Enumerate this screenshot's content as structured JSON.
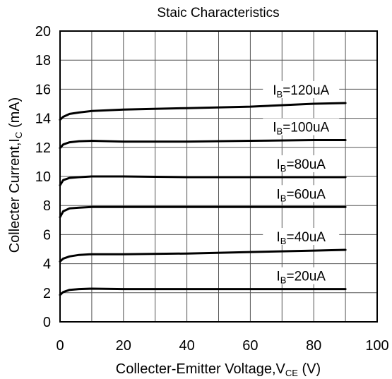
{
  "chart_data": {
    "type": "line",
    "title": "Staic Characteristics",
    "xlabel": {
      "main": "Collecter-Emitter Voltage,V",
      "sub": "CE",
      "unit": " (V)"
    },
    "ylabel": {
      "main": "Collecter Current,I",
      "sub": "C",
      "unit": " (mA)"
    },
    "xlim": [
      0,
      100
    ],
    "ylim": [
      0,
      20
    ],
    "x_ticks": [
      "0",
      "20",
      "40",
      "60",
      "80",
      "100"
    ],
    "y_ticks": [
      "0",
      "2",
      "4",
      "6",
      "8",
      "10",
      "12",
      "14",
      "16",
      "18",
      "20"
    ],
    "grid": true,
    "series": [
      {
        "name": {
          "pre": "I",
          "sub": "B",
          "post": "=120uA"
        },
        "x": [
          0,
          1,
          3,
          6,
          10,
          20,
          40,
          60,
          80,
          90
        ],
        "y": [
          13.9,
          14.1,
          14.3,
          14.4,
          14.5,
          14.6,
          14.7,
          14.8,
          15.0,
          15.05
        ]
      },
      {
        "name": {
          "pre": "I",
          "sub": "B",
          "post": "=100uA"
        },
        "x": [
          0,
          1,
          3,
          6,
          10,
          20,
          40,
          60,
          80,
          90
        ],
        "y": [
          11.95,
          12.2,
          12.35,
          12.42,
          12.45,
          12.4,
          12.4,
          12.45,
          12.5,
          12.5
        ]
      },
      {
        "name": {
          "pre": "I",
          "sub": "B",
          "post": "=80uA"
        },
        "x": [
          0,
          1,
          3,
          6,
          10,
          20,
          40,
          60,
          80,
          90
        ],
        "y": [
          9.4,
          9.75,
          9.9,
          9.95,
          10.0,
          10.0,
          9.95,
          9.95,
          9.95,
          9.95
        ]
      },
      {
        "name": {
          "pre": "I",
          "sub": "B",
          "post": "=60uA"
        },
        "x": [
          0,
          1,
          3,
          6,
          10,
          20,
          40,
          60,
          80,
          90
        ],
        "y": [
          7.2,
          7.6,
          7.8,
          7.85,
          7.9,
          7.9,
          7.9,
          7.9,
          7.9,
          7.9
        ]
      },
      {
        "name": {
          "pre": "I",
          "sub": "B",
          "post": "=40uA"
        },
        "x": [
          0,
          1,
          3,
          6,
          10,
          20,
          40,
          60,
          80,
          90
        ],
        "y": [
          4.15,
          4.35,
          4.5,
          4.6,
          4.65,
          4.65,
          4.7,
          4.8,
          4.9,
          4.95
        ]
      },
      {
        "name": {
          "pre": "I",
          "sub": "B",
          "post": "=20uA"
        },
        "x": [
          0,
          1,
          3,
          6,
          10,
          20,
          40,
          60,
          80,
          90
        ],
        "y": [
          1.85,
          2.05,
          2.2,
          2.25,
          2.28,
          2.25,
          2.25,
          2.25,
          2.25,
          2.25
        ]
      }
    ]
  }
}
